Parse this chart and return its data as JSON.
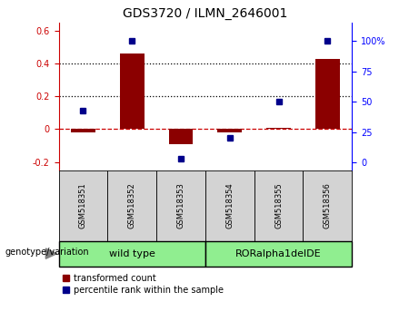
{
  "title": "GDS3720 / ILMN_2646001",
  "samples": [
    "GSM518351",
    "GSM518352",
    "GSM518353",
    "GSM518354",
    "GSM518355",
    "GSM518356"
  ],
  "red_bars": [
    -0.02,
    0.46,
    -0.09,
    -0.02,
    0.01,
    0.43
  ],
  "blue_dots_pct": [
    43,
    100,
    3,
    20,
    50,
    100
  ],
  "ylim_left": [
    -0.25,
    0.65
  ],
  "ylim_right": [
    -6.25,
    115.25
  ],
  "yticks_left": [
    -0.2,
    0.0,
    0.2,
    0.4,
    0.6
  ],
  "yticks_right": [
    0,
    25,
    50,
    75,
    100
  ],
  "ytick_labels_left": [
    "-0.2",
    "0",
    "0.2",
    "0.4",
    "0.6"
  ],
  "ytick_labels_right": [
    "0",
    "25",
    "50",
    "75",
    "100%"
  ],
  "hlines": [
    0.2,
    0.4
  ],
  "hline_zero": 0.0,
  "genotype_label": "genotype/variation",
  "legend_red": "transformed count",
  "legend_blue": "percentile rank within the sample",
  "bar_color": "#8B0000",
  "dot_color": "#00008B",
  "bar_width": 0.5,
  "group_header_bg": "#d3d3d3",
  "group1_bg": "#90EE90",
  "group2_bg": "#90EE90",
  "left_spine_color": "#cc0000",
  "zero_line_color": "#cc0000",
  "title_fontsize": 10,
  "tick_fontsize": 7,
  "label_fontsize": 7,
  "group_label_fontsize": 8,
  "sample_fontsize": 6,
  "legend_fontsize": 7
}
